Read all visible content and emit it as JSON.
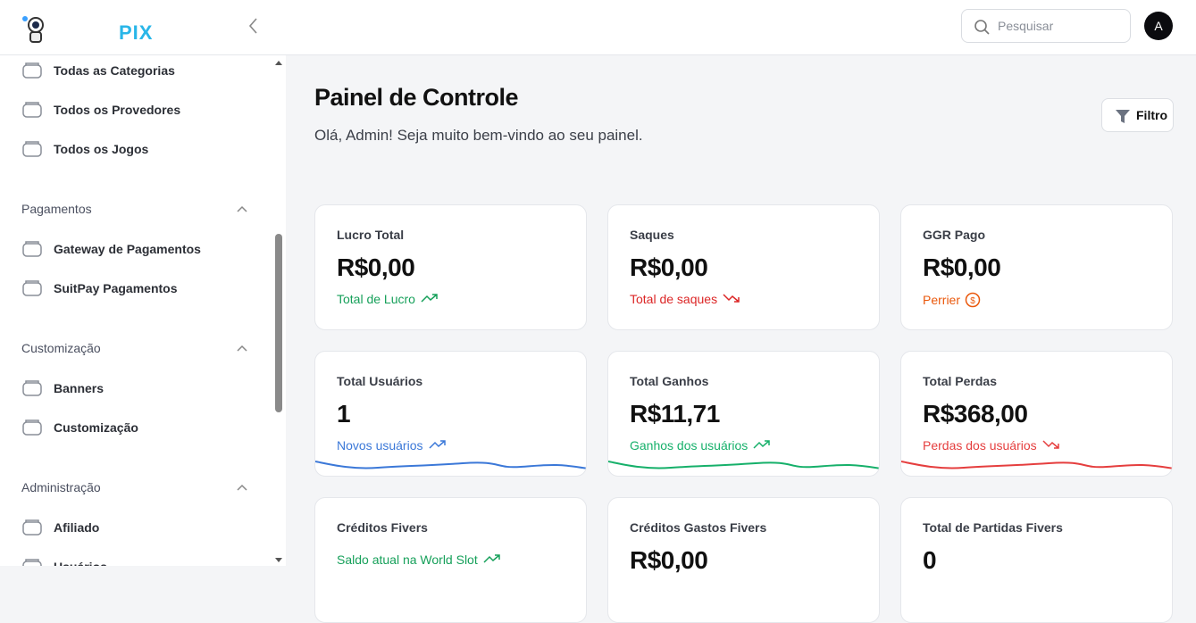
{
  "header": {
    "logo": "PIX",
    "search": "Pesquisar",
    "avatar": "A"
  },
  "sidebar": {
    "items": [
      "Todas as Categorias",
      "Todos os Provedores",
      "Todos os Jogos"
    ],
    "sections": [
      {
        "title": "Pagamentos",
        "items": [
          "Gateway de Pagamentos",
          "SuitPay Pagamentos"
        ]
      },
      {
        "title": "Customização",
        "items": [
          "Banners",
          "Customização"
        ]
      },
      {
        "title": "Administração",
        "items": [
          "Afiliado",
          "Usuários"
        ]
      }
    ]
  },
  "main": {
    "title": "Painel de Controle",
    "subtitle": "Olá, Admin! Seja muito bem-vindo ao seu painel.",
    "filter": "Filtro",
    "cards": [
      {
        "label": "Lucro Total",
        "value": "R$0,00",
        "note": "Total de Lucro"
      },
      {
        "label": "Saques",
        "value": "R$0,00",
        "note": "Total de saques"
      },
      {
        "label": "GGR Pago",
        "value": "R$0,00",
        "note": "Perrier"
      },
      {
        "label": "Total Usuários",
        "value": "1",
        "note": "Novos usuários"
      },
      {
        "label": "Total Ganhos",
        "value": "R$11,71",
        "note": "Ganhos dos usuários"
      },
      {
        "label": "Total Perdas",
        "value": "R$368,00",
        "note": "Perdas dos usuários"
      },
      {
        "label": "Créditos Fivers",
        "note": "Saldo atual na World Slot"
      },
      {
        "label": "Créditos Gastos Fivers",
        "value": "R$0,00"
      },
      {
        "label": "Total de Partidas Fivers",
        "value": "0"
      }
    ]
  }
}
